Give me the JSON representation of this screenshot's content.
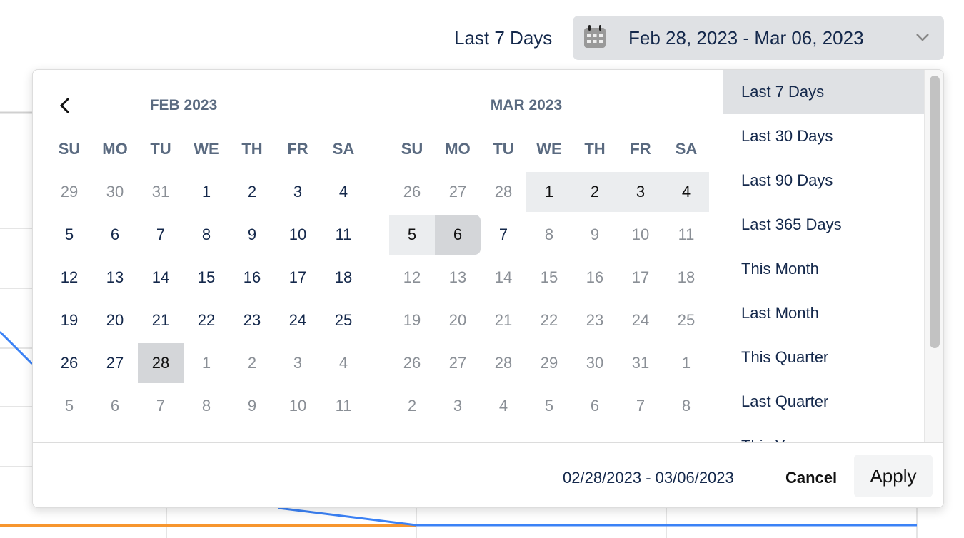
{
  "header": {
    "range_label": "Last 7 Days",
    "date_range": "Feb 28, 2023 - Mar 06, 2023",
    "calendar_icon": "calendar-icon",
    "chevron_icon": "chevron-down-icon"
  },
  "calendar": {
    "weekdays": [
      "SU",
      "MO",
      "TU",
      "WE",
      "TH",
      "FR",
      "SA"
    ],
    "months": [
      {
        "title": "FEB 2023",
        "days": [
          [
            29,
            30,
            31,
            1,
            2,
            3,
            4
          ],
          [
            5,
            6,
            7,
            8,
            9,
            10,
            11
          ],
          [
            12,
            13,
            14,
            15,
            16,
            17,
            18
          ],
          [
            19,
            20,
            21,
            22,
            23,
            24,
            25
          ],
          [
            26,
            27,
            28,
            1,
            2,
            3,
            4
          ],
          [
            5,
            6,
            7,
            8,
            9,
            10,
            11
          ]
        ],
        "first_current": 3,
        "last_current": 30
      },
      {
        "title": "MAR 2023",
        "days": [
          [
            26,
            27,
            28,
            1,
            2,
            3,
            4
          ],
          [
            5,
            6,
            7,
            8,
            9,
            10,
            11
          ],
          [
            12,
            13,
            14,
            15,
            16,
            17,
            18
          ],
          [
            19,
            20,
            21,
            22,
            23,
            24,
            25
          ],
          [
            26,
            27,
            28,
            29,
            30,
            31,
            1
          ],
          [
            2,
            3,
            4,
            5,
            6,
            7,
            8
          ]
        ],
        "first_current": 3,
        "last_current": 9
      }
    ],
    "selected_start": "Feb 28",
    "selected_end": "Mar 6"
  },
  "presets": [
    "Last 7 Days",
    "Last 30 Days",
    "Last 90 Days",
    "Last 365 Days",
    "This Month",
    "Last Month",
    "This Quarter",
    "Last Quarter",
    "This Year"
  ],
  "active_preset": "Last 7 Days",
  "footer": {
    "range": "02/28/2023 - 03/06/2023",
    "cancel": "Cancel",
    "apply": "Apply"
  },
  "colors": {
    "series_blue": "#3b82f6",
    "series_orange": "#f7962f",
    "accent_text": "#14284b"
  }
}
